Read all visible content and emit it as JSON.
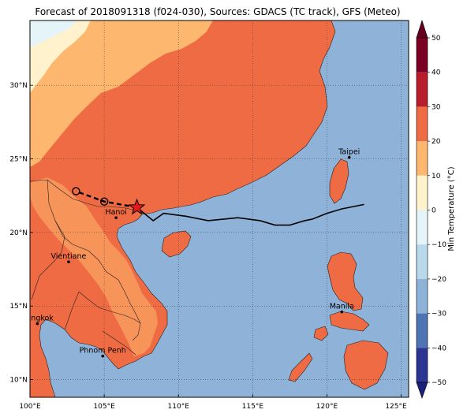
{
  "title": "Forecast of 2018091318 (f024-030), Sources: GDACS (TC track), GFS (Meteo)",
  "colorbar": {
    "label": "Min Temperature (°C)",
    "ticks": [
      "50",
      "40",
      "30",
      "20",
      "10",
      "0",
      "−10",
      "−20",
      "−30",
      "−40",
      "−50"
    ],
    "bands": [
      {
        "from": 40,
        "to": 50,
        "color": "#7a0123"
      },
      {
        "from": 30,
        "to": 40,
        "color": "#b81d2b"
      },
      {
        "from": 20,
        "to": 30,
        "color": "#ef6b43"
      },
      {
        "from": 10,
        "to": 20,
        "color": "#fdb76e"
      },
      {
        "from": 0,
        "to": 10,
        "color": "#fff2cd"
      },
      {
        "from": -10,
        "to": 0,
        "color": "#e4f4f8"
      },
      {
        "from": -20,
        "to": -10,
        "color": "#b8d9ea"
      },
      {
        "from": -30,
        "to": -20,
        "color": "#8fb3d8"
      },
      {
        "from": -40,
        "to": -30,
        "color": "#4e74b4"
      },
      {
        "from": -50,
        "to": -40,
        "color": "#2c3592"
      }
    ],
    "extend_top_color": "#67001f",
    "extend_bottom_color": "#1a1f7a"
  },
  "map": {
    "lon_range": [
      100,
      125.5
    ],
    "lat_range": [
      8.8,
      34.4
    ],
    "lon_ticks": [
      {
        "value": 100,
        "label": "100°E"
      },
      {
        "value": 105,
        "label": "105°E"
      },
      {
        "value": 110,
        "label": "110°E"
      },
      {
        "value": 115,
        "label": "115°E"
      },
      {
        "value": 120,
        "label": "120°E"
      },
      {
        "value": 125,
        "label": "125°E"
      }
    ],
    "lat_ticks": [
      {
        "value": 10,
        "label": "10°N"
      },
      {
        "value": 15,
        "label": "15°N"
      },
      {
        "value": 20,
        "label": "20°N"
      },
      {
        "value": 25,
        "label": "25°N"
      },
      {
        "value": 30,
        "label": "30°N"
      }
    ],
    "gridlines": true,
    "ocean_color": "#8fb3d8",
    "land_color": "#ef6b43",
    "cities": [
      {
        "name": "Taipei",
        "lon": 121.5,
        "lat": 25.1
      },
      {
        "name": "Hanoi",
        "lon": 105.8,
        "lat": 21.0
      },
      {
        "name": "Vientiane",
        "lon": 102.6,
        "lat": 18.0
      },
      {
        "name": "Manila",
        "lon": 121.0,
        "lat": 14.6
      },
      {
        "name": "Bangkok",
        "lon": 100.5,
        "lat": 13.8
      },
      {
        "name": "Phnom Penh",
        "lon": 104.9,
        "lat": 11.6
      }
    ],
    "track_observed": [
      {
        "lon": 122.5,
        "lat": 21.9
      },
      {
        "lon": 121.0,
        "lat": 21.6
      },
      {
        "lon": 120.0,
        "lat": 21.3
      },
      {
        "lon": 119.0,
        "lat": 20.9
      },
      {
        "lon": 118.5,
        "lat": 20.8
      },
      {
        "lon": 117.5,
        "lat": 20.5
      },
      {
        "lon": 116.5,
        "lat": 20.5
      },
      {
        "lon": 115.5,
        "lat": 20.8
      },
      {
        "lon": 114.0,
        "lat": 21.0
      },
      {
        "lon": 112.0,
        "lat": 20.8
      },
      {
        "lon": 110.5,
        "lat": 21.1
      },
      {
        "lon": 109.0,
        "lat": 21.3
      },
      {
        "lon": 108.3,
        "lat": 20.8
      },
      {
        "lon": 107.2,
        "lat": 21.7
      }
    ],
    "track_forecast": [
      {
        "lon": 107.2,
        "lat": 21.7
      },
      {
        "lon": 105.0,
        "lat": 22.1
      },
      {
        "lon": 103.1,
        "lat": 22.8
      }
    ],
    "forecast_points": [
      {
        "lon": 105.0,
        "lat": 22.1
      },
      {
        "lon": 103.1,
        "lat": 22.8
      }
    ],
    "current_position": {
      "lon": 107.2,
      "lat": 21.7
    }
  }
}
